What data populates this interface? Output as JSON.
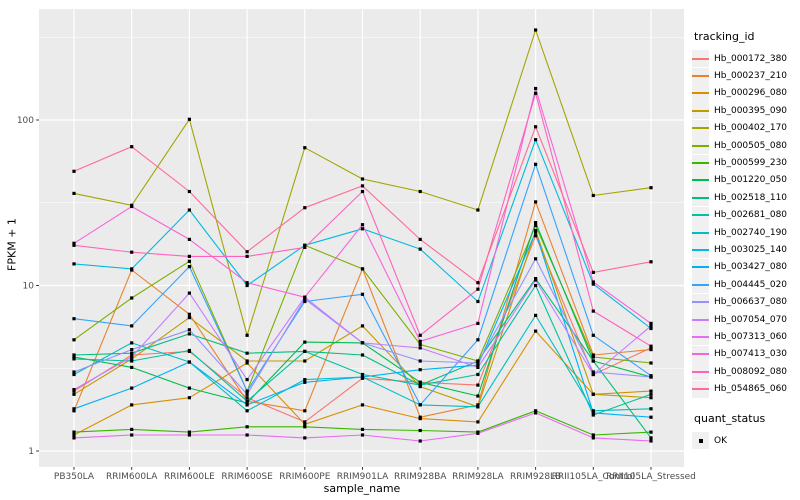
{
  "figure": {
    "bg": "#FFFFFF",
    "panel_bg": "#EBEBEB",
    "grid_color": "#FFFFFF",
    "tick_color": "#333333",
    "tick_label_color": "#4D4D4D",
    "axis_title_color": "#000000",
    "point_color": "#000000"
  },
  "chart_data": {
    "type": "line",
    "title": "",
    "xlabel": "sample_name",
    "ylabel": "FPKM + 1",
    "y_scale": "log10",
    "ylim": [
      1,
      425
    ],
    "grid": true,
    "y_ticks": [
      1,
      10,
      100
    ],
    "y_tick_labels": [
      "1",
      "10",
      "100"
    ],
    "y_minor_ticks": [
      3.162,
      31.62,
      316.2
    ],
    "categories": [
      "PB350LA",
      "RRIM600LA",
      "RRIM600LE",
      "RRIM600SE",
      "RRIM600PE",
      "RRIM901LA",
      "RRIM928BA",
      "RRIM928LA",
      "RRIM928LB",
      "RRII105LA_Control",
      "RRII105LA_Stressed"
    ],
    "legend": {
      "title": "tracking_id",
      "position": "right"
    },
    "legend2": {
      "title": "quant_status",
      "items": [
        {
          "label": "OK",
          "marker": "black-square"
        }
      ]
    },
    "series": [
      {
        "name": "Hb_000172_380",
        "color": "#F8766D",
        "values": [
          2.3,
          3.8,
          4.0,
          2.1,
          1.5,
          2.75,
          2.6,
          2.5,
          20,
          2.9,
          4.2
        ]
      },
      {
        "name": "Hb_000237_210",
        "color": "#E8822E",
        "values": [
          1.75,
          12.4,
          6.7,
          2.0,
          1.75,
          12.6,
          1.6,
          1.9,
          32,
          3.8,
          4.1
        ]
      },
      {
        "name": "Hb_000296_080",
        "color": "#D89000",
        "values": [
          1.25,
          1.9,
          2.1,
          3.4,
          1.45,
          1.9,
          1.57,
          1.5,
          5.3,
          2.2,
          2.3
        ]
      },
      {
        "name": "Hb_000395_090",
        "color": "#C09B00",
        "values": [
          2.2,
          3.6,
          6.4,
          3.5,
          3.5,
          5.7,
          2.45,
          1.85,
          21.5,
          2.2,
          2.1
        ]
      },
      {
        "name": "Hb_000402_170",
        "color": "#A3A500",
        "values": [
          36,
          30.5,
          101,
          5.0,
          68,
          44,
          37,
          28.6,
          350,
          35,
          39
        ]
      },
      {
        "name": "Hb_000505_080",
        "color": "#7CAE00",
        "values": [
          4.7,
          8.4,
          14,
          2.3,
          17.5,
          12.6,
          4.4,
          3.5,
          23,
          3.7,
          3.4
        ]
      },
      {
        "name": "Hb_000599_230",
        "color": "#39B600",
        "values": [
          1.3,
          1.35,
          1.3,
          1.4,
          1.4,
          1.35,
          1.33,
          1.3,
          1.75,
          1.25,
          1.3
        ]
      },
      {
        "name": "Hb_001220_050",
        "color": "#00BB4E",
        "values": [
          3.7,
          3.2,
          2.4,
          1.95,
          4.55,
          4.5,
          2.6,
          2.15,
          24,
          3.5,
          2.8
        ]
      },
      {
        "name": "Hb_002518_110",
        "color": "#00BF7D",
        "values": [
          3.8,
          3.9,
          5.1,
          3.9,
          4.0,
          3.8,
          2.5,
          3.5,
          11,
          3.5,
          1.2
        ]
      },
      {
        "name": "Hb_002681_080",
        "color": "#00C1A3",
        "values": [
          3.6,
          3.5,
          4.05,
          2.0,
          4.0,
          2.9,
          2.5,
          2.9,
          10,
          1.65,
          2.2
        ]
      },
      {
        "name": "Hb_002740_190",
        "color": "#00BFC4",
        "values": [
          2.9,
          4.5,
          3.45,
          1.75,
          2.7,
          2.8,
          1.9,
          1.85,
          6.6,
          1.75,
          1.8
        ]
      },
      {
        "name": "Hb_003025_140",
        "color": "#00BAE0",
        "values": [
          13.5,
          12.6,
          28.6,
          10,
          17.5,
          22,
          16.6,
          8.0,
          76,
          10.2,
          5.5
        ]
      },
      {
        "name": "Hb_003427_080",
        "color": "#00B0F6",
        "values": [
          1.8,
          2.4,
          3.45,
          1.9,
          2.6,
          2.8,
          3.1,
          3.3,
          21,
          1.7,
          1.6
        ]
      },
      {
        "name": "Hb_004445_020",
        "color": "#35A2FF",
        "values": [
          6.3,
          5.7,
          13,
          2.3,
          8.0,
          8.85,
          1.9,
          4.7,
          54,
          5.0,
          2.85
        ]
      },
      {
        "name": "Hb_006637_080",
        "color": "#9590FF",
        "values": [
          3.0,
          4.1,
          5.4,
          2.2,
          8.3,
          4.5,
          3.5,
          3.4,
          14.5,
          3.0,
          2.8
        ]
      },
      {
        "name": "Hb_007054_070",
        "color": "#C77CFF",
        "values": [
          2.35,
          3.7,
          9.0,
          2.7,
          8.5,
          4.5,
          4.2,
          3.2,
          10.8,
          2.9,
          5.7
        ]
      },
      {
        "name": "Hb_007313_060",
        "color": "#E76BF3",
        "values": [
          1.2,
          1.25,
          1.25,
          1.25,
          1.2,
          1.25,
          1.15,
          1.28,
          1.7,
          1.2,
          1.15
        ]
      },
      {
        "name": "Hb_007413_030",
        "color": "#FA62DB",
        "values": [
          18,
          30,
          19,
          10.4,
          8.5,
          23.3,
          4.6,
          5.9,
          155,
          10.5,
          5.9
        ]
      },
      {
        "name": "Hb_008092_080",
        "color": "#FF62BC",
        "values": [
          17.5,
          15.9,
          15,
          15,
          17,
          37,
          5.0,
          9.5,
          145,
          7.0,
          4.3
        ]
      },
      {
        "name": "Hb_054865_060",
        "color": "#FF6A98",
        "values": [
          49,
          69,
          37,
          16,
          29.5,
          40,
          19,
          10.4,
          91,
          12,
          13.9
        ]
      }
    ]
  }
}
